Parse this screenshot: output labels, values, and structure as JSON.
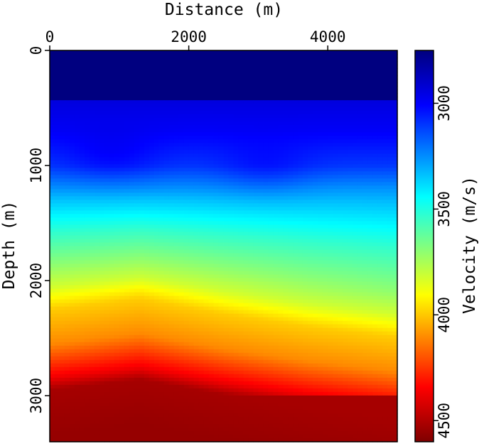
{
  "chart_data": {
    "type": "heatmap",
    "title": "",
    "xlabel": "Distance (m)",
    "ylabel": "Depth (m)",
    "x_axis_position": "top",
    "xlim": [
      0,
      5000
    ],
    "ylim": [
      0,
      3400
    ],
    "y_inverted": true,
    "xticks": [
      0,
      2000,
      4000
    ],
    "xtick_labels": [
      "0",
      "2000",
      "4000"
    ],
    "yticks": [
      0,
      1000,
      2000,
      3000
    ],
    "ytick_labels": [
      "0",
      "1000",
      "2000",
      "3000"
    ],
    "colorbar": {
      "label": "Velocity (m/s)",
      "placement": "right",
      "range": [
        2750,
        4600
      ],
      "ticks": [
        3000,
        3500,
        4000,
        4500
      ],
      "tick_labels": [
        "3000",
        "3500",
        "4000",
        "4500"
      ],
      "colormap": "jet",
      "reversed": true
    },
    "model": {
      "water_layer": {
        "depth_bottom": 430,
        "velocity": 2750
      },
      "velocity_at_depth": [
        {
          "depth": 430,
          "velocity": 2920
        },
        {
          "depth": 700,
          "velocity": 2970
        },
        {
          "depth": 1000,
          "velocity": 3080
        },
        {
          "depth": 1300,
          "velocity": 3330
        },
        {
          "depth": 1600,
          "velocity": 3530
        },
        {
          "depth": 1900,
          "velocity": 3700
        },
        {
          "depth": 2100,
          "velocity": 3820
        },
        {
          "depth": 2300,
          "velocity": 4000
        },
        {
          "depth": 2600,
          "velocity": 4120
        },
        {
          "depth": 2900,
          "velocity": 4400
        },
        {
          "depth": 3000,
          "velocity": 4530
        },
        {
          "depth": 3400,
          "velocity": 4560
        }
      ],
      "layer_top_depth_vs_distance": {
        "x": [
          0,
          1300,
          2500,
          3700,
          5000
        ],
        "depth": [
          2180,
          2090,
          2220,
          2330,
          2420
        ]
      },
      "shallow_lows": [
        {
          "x": 900,
          "depth": 950
        },
        {
          "x": 3100,
          "depth": 1050
        }
      ]
    }
  }
}
